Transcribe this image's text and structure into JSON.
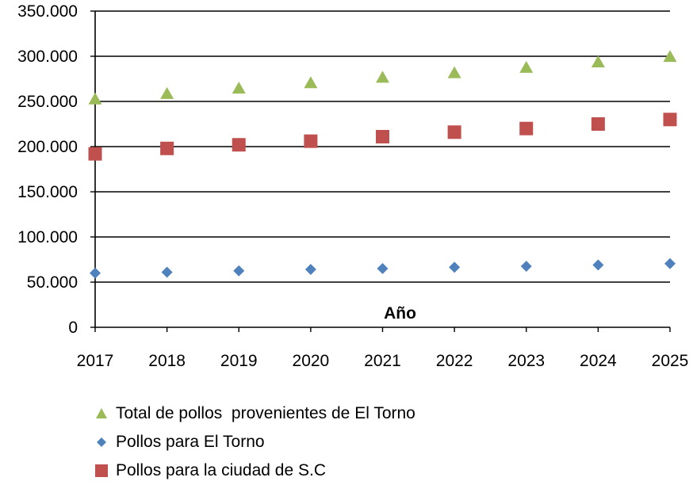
{
  "chart_data": {
    "type": "scatter",
    "xlabel": "Año",
    "ylabel": "",
    "x": [
      2017,
      2018,
      2019,
      2020,
      2021,
      2022,
      2023,
      2024,
      2025
    ],
    "ylim": [
      0,
      350000
    ],
    "yticks": [
      "0",
      "50.000",
      "100.000",
      "150.000",
      "200.000",
      "250.000",
      "300.000",
      "350.000"
    ],
    "grid": true,
    "legend_position": "bottom",
    "series": [
      {
        "name": "Total de pollos  provenientes de El Torno",
        "marker": "triangle",
        "color": "#9bbb59",
        "values": [
          252000,
          258000,
          264000,
          270000,
          276000,
          281000,
          287000,
          293000,
          299000
        ]
      },
      {
        "name": "Pollos para El Torno",
        "marker": "diamond",
        "color": "#4f81bd",
        "values": [
          60000,
          61000,
          62500,
          64000,
          65000,
          66500,
          67500,
          69000,
          70500
        ]
      },
      {
        "name": "Pollos para la ciudad de S.C",
        "marker": "square",
        "color": "#c0504d",
        "values": [
          192000,
          198000,
          202000,
          206000,
          211000,
          216000,
          220000,
          225000,
          230000
        ]
      }
    ],
    "legend_order": [
      0,
      1,
      2
    ]
  }
}
